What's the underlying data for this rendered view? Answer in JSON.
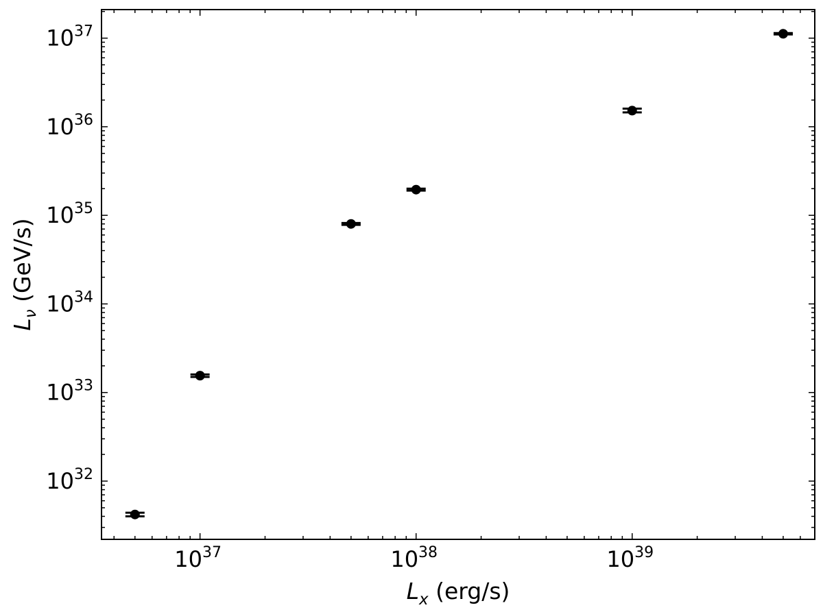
{
  "chart_data": {
    "type": "scatter",
    "title": "",
    "xlabel": {
      "main": "L",
      "sub": "x",
      "rest": " (erg/s)"
    },
    "ylabel": {
      "main": "L",
      "sub": "ν",
      "rest": " (GeV/s)"
    },
    "xscale": "log",
    "yscale": "log",
    "xlim": [
      3.5e+36,
      7e+39
    ],
    "ylim": [
      2.2e+31,
      2.1e+37
    ],
    "grid": false,
    "legend": "none",
    "marker_color": "#000000",
    "x_ticks": [
      {
        "base": "10",
        "exp": "37",
        "value": 1e+37
      },
      {
        "base": "10",
        "exp": "38",
        "value": 1e+38
      },
      {
        "base": "10",
        "exp": "39",
        "value": 1e+39
      }
    ],
    "y_ticks": [
      {
        "base": "10",
        "exp": "32",
        "value": 1e+32
      },
      {
        "base": "10",
        "exp": "33",
        "value": 1e+33
      },
      {
        "base": "10",
        "exp": "34",
        "value": 1e+34
      },
      {
        "base": "10",
        "exp": "35",
        "value": 1e+35
      },
      {
        "base": "10",
        "exp": "36",
        "value": 1e+36
      },
      {
        "base": "10",
        "exp": "37",
        "value": 1e+37
      }
    ],
    "points": [
      {
        "x": 5e+36,
        "y": 4.2e+31,
        "y_err": [
          4e+31,
          4.4e+31
        ]
      },
      {
        "x": 1e+37,
        "y": 1.55e+33,
        "y_err": [
          1.5e+33,
          1.6e+33
        ]
      },
      {
        "x": 5e+37,
        "y": 8e+34,
        "y_err": [
          7.8e+34,
          8.2e+34
        ]
      },
      {
        "x": 1e+38,
        "y": 1.95e+35,
        "y_err": [
          1.9e+35,
          2e+35
        ]
      },
      {
        "x": 1e+39,
        "y": 1.52e+36,
        "y_err": [
          1.45e+36,
          1.6e+36
        ]
      },
      {
        "x": 5e+39,
        "y": 1.12e+37,
        "y_err": [
          1.1e+37,
          1.14e+37
        ]
      }
    ]
  }
}
